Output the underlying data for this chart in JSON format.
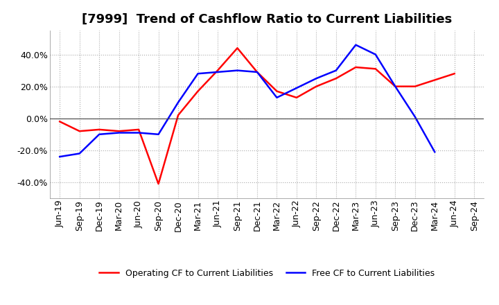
{
  "title": "[7999]  Trend of Cashflow Ratio to Current Liabilities",
  "x_labels": [
    "Jun-19",
    "Sep-19",
    "Dec-19",
    "Mar-20",
    "Jun-20",
    "Sep-20",
    "Dec-20",
    "Mar-21",
    "Jun-21",
    "Sep-21",
    "Dec-21",
    "Mar-22",
    "Jun-22",
    "Sep-22",
    "Dec-22",
    "Mar-23",
    "Jun-23",
    "Sep-23",
    "Dec-23",
    "Mar-24",
    "Jun-24",
    "Sep-24"
  ],
  "operating_cf": [
    -0.02,
    -0.08,
    -0.07,
    -0.08,
    -0.07,
    -0.41,
    0.02,
    0.17,
    0.3,
    0.44,
    0.29,
    0.17,
    0.13,
    0.2,
    0.25,
    0.32,
    0.31,
    0.2,
    0.2,
    0.24,
    0.28,
    null
  ],
  "free_cf": [
    -0.24,
    -0.22,
    -0.1,
    -0.09,
    -0.09,
    -0.1,
    0.1,
    0.28,
    0.29,
    0.3,
    0.29,
    0.13,
    0.19,
    0.25,
    0.3,
    0.46,
    0.4,
    0.2,
    0.01,
    -0.21,
    null,
    null
  ],
  "operating_cf_color": "#ff0000",
  "free_cf_color": "#0000ff",
  "ylim": [
    -0.5,
    0.55
  ],
  "yticks": [
    -0.4,
    -0.2,
    0.0,
    0.2,
    0.4
  ],
  "background_color": "#ffffff",
  "plot_bg_color": "#ffffff",
  "grid_color": "#aaaaaa",
  "legend_op": "Operating CF to Current Liabilities",
  "legend_free": "Free CF to Current Liabilities",
  "title_fontsize": 13,
  "tick_fontsize": 9,
  "legend_fontsize": 9
}
